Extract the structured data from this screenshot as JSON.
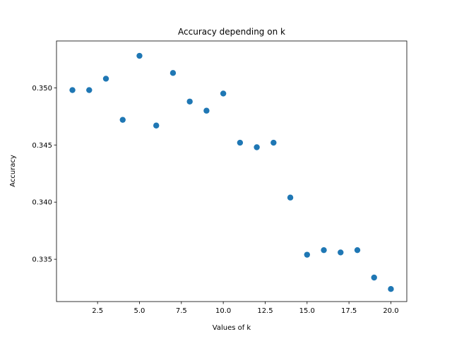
{
  "chart_data": {
    "type": "scatter",
    "title": "Accuracy depending on k",
    "xlabel": "Values of k",
    "ylabel": "Accuracy",
    "xlim": [
      0.05,
      20.95
    ],
    "ylim": [
      0.3313,
      0.3541
    ],
    "xticks": [
      2.5,
      5.0,
      7.5,
      10.0,
      12.5,
      15.0,
      17.5,
      20.0
    ],
    "xtick_labels": [
      "2.5",
      "5.0",
      "7.5",
      "10.0",
      "12.5",
      "15.0",
      "17.5",
      "20.0"
    ],
    "yticks": [
      0.335,
      0.34,
      0.345,
      0.35
    ],
    "ytick_labels": [
      "0.335",
      "0.340",
      "0.345",
      "0.350"
    ],
    "grid": false,
    "legend": "none",
    "series": [
      {
        "color": "#1f77b4",
        "x": [
          1,
          2,
          3,
          4,
          5,
          6,
          7,
          8,
          9,
          10,
          11,
          12,
          13,
          14,
          15,
          16,
          17,
          18,
          19,
          20
        ],
        "y": [
          0.3498,
          0.3498,
          0.3508,
          0.3472,
          0.3528,
          0.3467,
          0.3513,
          0.3488,
          0.348,
          0.3495,
          0.3452,
          0.3448,
          0.3452,
          0.3404,
          0.3354,
          0.3358,
          0.3356,
          0.3358,
          0.3334,
          0.3324
        ]
      }
    ]
  }
}
